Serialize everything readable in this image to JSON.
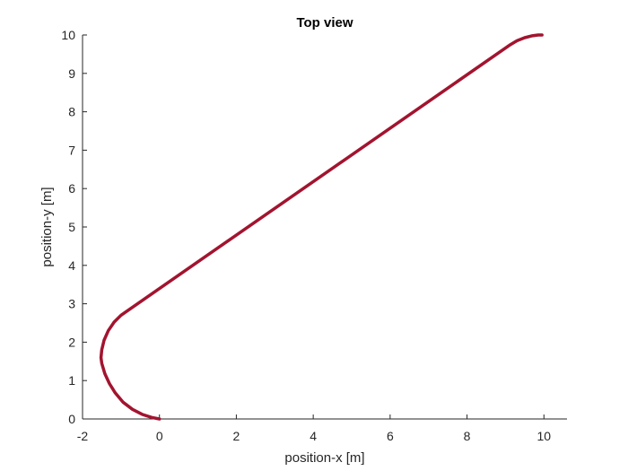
{
  "chart_data": {
    "type": "line",
    "title": "Top view",
    "xlabel": "position-x [m]",
    "ylabel": "position-y [m]",
    "xlim": [
      -2,
      10.6
    ],
    "ylim": [
      0,
      10
    ],
    "xticks": [
      -2,
      0,
      2,
      4,
      6,
      8,
      10
    ],
    "yticks": [
      0,
      1,
      2,
      3,
      4,
      5,
      6,
      7,
      8,
      9,
      10
    ],
    "grid": false,
    "legend": "none",
    "series": [
      {
        "color": "#a2142f",
        "x": [
          0,
          -0.2,
          -0.45,
          -0.7,
          -0.95,
          -1.15,
          -1.3,
          -1.42,
          -1.5,
          -1.52,
          -1.5,
          -1.44,
          -1.33,
          -1.18,
          -1.0,
          -0.9,
          9.1,
          9.3,
          9.5,
          9.7,
          9.85,
          9.95
        ],
        "y": [
          0,
          0.04,
          0.12,
          0.25,
          0.44,
          0.68,
          0.92,
          1.18,
          1.45,
          1.6,
          1.8,
          2.05,
          2.3,
          2.52,
          2.7,
          2.77,
          9.73,
          9.85,
          9.93,
          9.98,
          10.0,
          10.0
        ]
      }
    ]
  }
}
